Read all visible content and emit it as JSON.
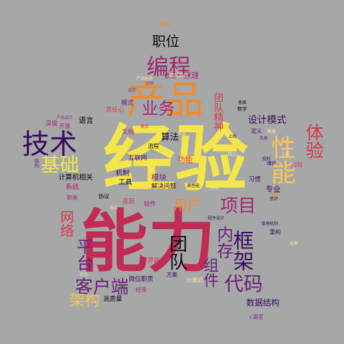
{
  "colors": {
    "background": "#a6a8a8",
    "yellow": "#f4e64a",
    "gold": "#f7c45a",
    "orange": "#f08a2c",
    "dark_orange": "#e0672b",
    "red": "#d6384a",
    "crimson": "#c12c55",
    "magenta": "#a12670",
    "purple": "#6b1d7a",
    "deep_purple": "#3a0a5e",
    "black": "#0a0612",
    "pale_yellow": "#f6e7a3"
  },
  "words": [
    {
      "text": "经验",
      "color": "#f4e64a"
    },
    {
      "text": "能力",
      "color": "#c12c55"
    },
    {
      "text": "产品",
      "color": "#f08a2c"
    },
    {
      "text": "技术",
      "color": "#3a0a5e"
    },
    {
      "text": "编程",
      "color": "#a12670"
    },
    {
      "text": "职位",
      "color": "#0a0612"
    },
    {
      "text": "基础",
      "color": "#f4e64a"
    },
    {
      "text": "业务",
      "color": "#a12670"
    },
    {
      "text": "性能",
      "color": "#f7c45a"
    },
    {
      "text": "体验",
      "color": "#d6384a"
    },
    {
      "text": "客户端",
      "color": "#6b1d7a"
    },
    {
      "text": "代码",
      "color": "#6b1d7a"
    },
    {
      "text": "项目",
      "color": "#a12670"
    },
    {
      "text": "框架",
      "color": "#3a0a5e"
    },
    {
      "text": "平台",
      "color": "#6b1d7a"
    },
    {
      "text": "架构",
      "color": "#f7c45a"
    },
    {
      "text": "团队",
      "color": "#0a0612"
    },
    {
      "text": "内存",
      "color": "#6b1d7a"
    },
    {
      "text": "组件",
      "color": "#6b1d7a"
    },
    {
      "text": "用户",
      "color": "#f08a2c"
    },
    {
      "text": "网络",
      "color": "#d6384a"
    },
    {
      "text": "设计模式",
      "color": "#3a0a5e"
    },
    {
      "text": "团队精神",
      "color": "#d6384a"
    },
    {
      "text": "算法",
      "color": "#0a0612"
    },
    {
      "text": "数据结构",
      "color": "#3a0a5e"
    },
    {
      "text": "计算机相关",
      "color": "#0a0612"
    },
    {
      "text": "语言",
      "color": "#0a0612"
    },
    {
      "text": "系统",
      "color": "#a12670"
    },
    {
      "text": "专业",
      "color": "#3a0a5e"
    },
    {
      "text": "模块",
      "color": "#6b1d7a"
    },
    {
      "text": "机制",
      "color": "#3a0a5e"
    },
    {
      "text": "工具",
      "color": "#0a0612"
    },
    {
      "text": "互联网",
      "color": "#3a0a5e"
    },
    {
      "text": "解决问题",
      "color": "#3a0a5e"
    },
    {
      "text": "高质量",
      "color": "#0a0612"
    },
    {
      "text": "岗位职责",
      "color": "#3a0a5e"
    },
    {
      "text": "文档",
      "color": "#a12670"
    },
    {
      "text": "原理",
      "color": "#a12670"
    },
    {
      "text": "质量",
      "color": "#a12670"
    },
    {
      "text": "流程",
      "color": "#0a0612"
    },
    {
      "text": "功能",
      "color": "#d6384a"
    },
    {
      "text": "责任心",
      "color": "#d6384a"
    },
    {
      "text": "模式",
      "color": "#6b1d7a"
    },
    {
      "text": "深度",
      "color": "#a12670"
    },
    {
      "text": "开源",
      "color": "#a12670"
    },
    {
      "text": "习惯",
      "color": "#3a0a5e"
    },
    {
      "text": "定义",
      "color": "#3a0a5e"
    },
    {
      "text": "过程",
      "color": "#d6384a"
    },
    {
      "text": "底层",
      "color": "#d6384a"
    },
    {
      "text": "软件",
      "color": "#a12670"
    },
    {
      "text": "协议",
      "color": "#0a0612"
    },
    {
      "text": "方案",
      "color": "#3a0a5e"
    },
    {
      "text": "界面",
      "color": "#d6384a"
    },
    {
      "text": "计算机",
      "color": "#f6e7a3"
    },
    {
      "text": "经理",
      "color": "#a12670"
    },
    {
      "text": "c语言",
      "color": "#6b1d7a"
    },
    {
      "text": "职责",
      "color": "#a12670"
    },
    {
      "text": "重构",
      "color": "#3a0a5e"
    },
    {
      "text": "编码",
      "color": "#f08a2c"
    },
    {
      "text": "美团",
      "color": "#f08a2c"
    },
    {
      "text": "结构",
      "color": "#6b1d7a"
    },
    {
      "text": "高性能",
      "color": "#3a0a5e"
    },
    {
      "text": "风格",
      "color": "#6b1d7a"
    },
    {
      "text": "意识",
      "color": "#3a0a5e"
    },
    {
      "text": "管理机制",
      "color": "#3a0a5e"
    },
    {
      "text": "程序设计",
      "color": "#3a0a5e"
    },
    {
      "text": "思维",
      "color": "#0a0612"
    },
    {
      "text": "数学",
      "color": "#0a0612"
    },
    {
      "text": "产品设计",
      "color": "#a12670"
    },
    {
      "text": "上线",
      "color": "#3a0a5e"
    },
    {
      "text": "需求",
      "color": "#d6384a"
    },
    {
      "text": "选型",
      "color": "#a12670"
    },
    {
      "text": "维护",
      "color": "#3a0a5e"
    },
    {
      "text": "规划",
      "color": "#3a0a5e"
    },
    {
      "text": "核心",
      "color": "#f6e7a3"
    },
    {
      "text": "分析",
      "color": "#a12670"
    },
    {
      "text": "效率",
      "color": "#f6e7a3"
    },
    {
      "text": "团队协作",
      "color": "#f6e7a3"
    },
    {
      "text": "产品经理",
      "color": "#f6e7a3"
    },
    {
      "text": "敏捷",
      "color": "#f6e7a3"
    },
    {
      "text": "工程",
      "color": "#f6e7a3"
    },
    {
      "text": "优化",
      "color": "#f6e7a3"
    },
    {
      "text": "调试",
      "color": "#f6e7a3"
    },
    {
      "text": "测试",
      "color": "#f6e7a3"
    },
    {
      "text": "交流",
      "color": "#f6e7a3"
    }
  ]
}
